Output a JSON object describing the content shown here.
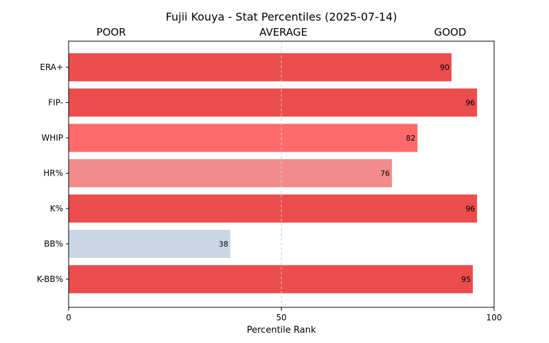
{
  "chart_data": {
    "type": "bar",
    "orientation": "horizontal",
    "title": "Fujii Kouya - Stat Percentiles (2025-07-14)",
    "xlabel": "Percentile Rank",
    "ylabel": "",
    "xlim": [
      0,
      100
    ],
    "xticks": [
      0,
      50,
      100
    ],
    "reference_line": {
      "x": 50,
      "style": "dashed",
      "color": "#cccccc"
    },
    "band_labels": [
      "POOR",
      "AVERAGE",
      "GOOD"
    ],
    "categories": [
      "ERA+",
      "FIP-",
      "WHIP",
      "HR%",
      "K%",
      "BB%",
      "K-BB%"
    ],
    "values": [
      90,
      96,
      82,
      76,
      96,
      38,
      95
    ],
    "bar_colors": [
      "#eb4d4d",
      "#eb4d4d",
      "#ff6b6b",
      "#f28c8c",
      "#eb4d4d",
      "#c9d6e6",
      "#eb4d4d"
    ],
    "data_labels": [
      "90",
      "96",
      "82",
      "76",
      "96",
      "38",
      "95"
    ],
    "grid": false,
    "legend": "none"
  }
}
